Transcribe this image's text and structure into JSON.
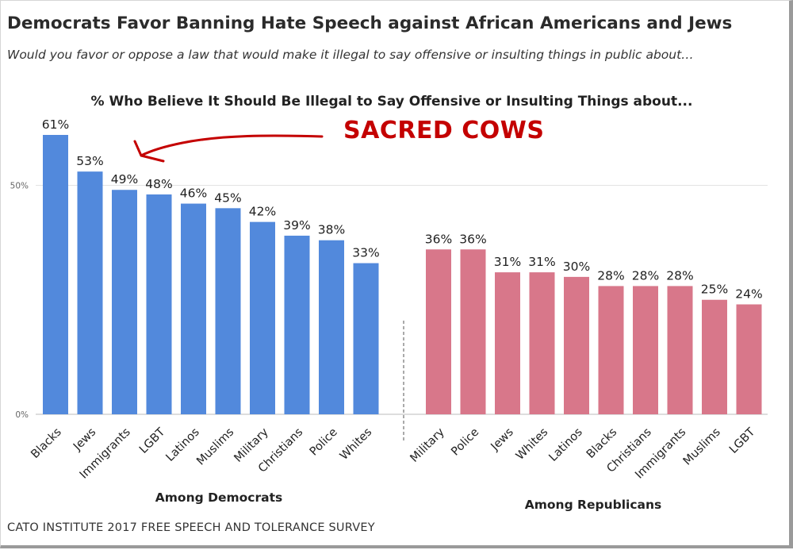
{
  "title": "Democrats Favor Banning Hate Speech against African Americans and Jews",
  "subtitle": "Would you favor or oppose a law that would make it illegal to say offensive or insulting things in public about…",
  "source": "CATO INSTITUTE 2017 FREE SPEECH AND TOLERANCE SURVEY",
  "annotation": "SACRED COWS",
  "colors": {
    "democrats": "#5289dc",
    "republicans": "#d8778a",
    "annotation": "#c40000"
  },
  "chart_data": {
    "type": "bar",
    "title": "% Who Believe It Should Be Illegal to Say Offensive or Insulting Things about...",
    "ylim": [
      0,
      61
    ],
    "yticks": [
      "0%",
      "50%"
    ],
    "grid": true,
    "groups": [
      {
        "name": "Among Democrats",
        "categories": [
          "Blacks",
          "Jews",
          "Immigrants",
          "LGBT",
          "Latinos",
          "Muslims",
          "Military",
          "Christians",
          "Police",
          "Whites"
        ],
        "values": [
          61,
          53,
          49,
          48,
          46,
          45,
          42,
          39,
          38,
          33
        ],
        "labels": [
          "61%",
          "53%",
          "49%",
          "48%",
          "46%",
          "45%",
          "42%",
          "39%",
          "38%",
          "33%"
        ]
      },
      {
        "name": "Among Republicans",
        "categories": [
          "Military",
          "Police",
          "Jews",
          "Whites",
          "Latinos",
          "Blacks",
          "Christians",
          "Immigrants",
          "Muslims",
          "LGBT"
        ],
        "values": [
          36,
          36,
          31,
          31,
          30,
          28,
          28,
          28,
          25,
          24
        ],
        "labels": [
          "36%",
          "36%",
          "31%",
          "31%",
          "30%",
          "28%",
          "28%",
          "28%",
          "25%",
          "24%"
        ]
      }
    ]
  }
}
